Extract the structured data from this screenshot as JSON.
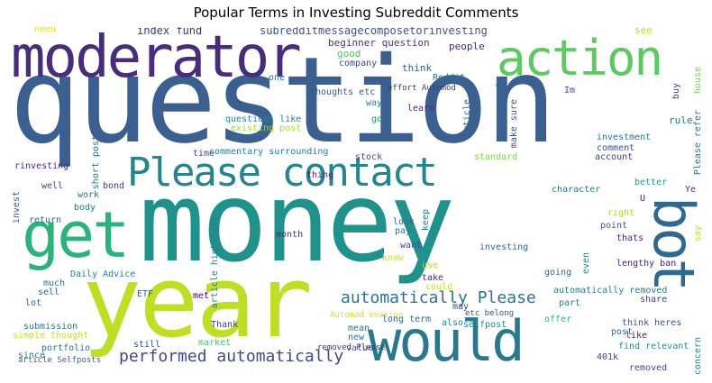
{
  "title": "Popular Terms in Investing Subreddit Comments",
  "words": [
    {
      "text": "question",
      "color": "#3b5f8f"
    },
    {
      "text": "money",
      "color": "#21918c"
    },
    {
      "text": "year",
      "color": "#bddf26"
    },
    {
      "text": "moderator",
      "color": "#472d7b"
    },
    {
      "text": "action",
      "color": "#5ec962"
    },
    {
      "text": "get",
      "color": "#2db27d"
    },
    {
      "text": "would",
      "color": "#2a788e"
    },
    {
      "text": "Please contact",
      "color": "#25858e"
    },
    {
      "text": "bot",
      "color": "#31688e"
    },
    {
      "text": "automatically Please",
      "color": "#2c728e"
    },
    {
      "text": "performed automatically",
      "color": "#3e4a89"
    },
    {
      "text": "index fund",
      "color": "#46327e"
    },
    {
      "text": "subredditmessagecomposetorinvesting",
      "color": "#3b528b"
    },
    {
      "text": "beginner question",
      "color": "#443983"
    },
    {
      "text": "people",
      "color": "#482878"
    },
    {
      "text": "good",
      "color": "#4ac16d"
    },
    {
      "text": "need",
      "color": "#dde318"
    },
    {
      "text": "company",
      "color": "#3f4788"
    },
    {
      "text": "think",
      "color": "#38598c"
    },
    {
      "text": "Reddit",
      "color": "#2e6e8e"
    },
    {
      "text": "effort Automod",
      "color": "#453781"
    },
    {
      "text": "Im",
      "color": "#3e4c8a"
    },
    {
      "text": "see",
      "color": "#b8de29"
    },
    {
      "text": "buy",
      "color": "#414487"
    },
    {
      "text": "house",
      "color": "#7ad151"
    },
    {
      "text": "one",
      "color": "#2a788e"
    },
    {
      "text": "thoughts etc",
      "color": "#38588c"
    },
    {
      "text": "way",
      "color": "#26818e"
    },
    {
      "text": "learn",
      "color": "#482475"
    },
    {
      "text": "cash",
      "color": "#2f6c8e"
    },
    {
      "text": "make sure",
      "color": "#39568c"
    },
    {
      "text": "article",
      "color": "#33638d"
    },
    {
      "text": "rule",
      "color": "#2d708e"
    },
    {
      "text": "questions like",
      "color": "#23898e"
    },
    {
      "text": "go",
      "color": "#1f968b"
    },
    {
      "text": "existing post",
      "color": "#9fda3a"
    },
    {
      "text": "short post",
      "color": "#2e6f8e"
    },
    {
      "text": "commentary surrounding",
      "color": "#277f8e"
    },
    {
      "text": "time",
      "color": "#3e4989"
    },
    {
      "text": "investment",
      "color": "#2c738e"
    },
    {
      "text": "Please refer",
      "color": "#2d708e"
    },
    {
      "text": "rinvesting",
      "color": "#472c7a"
    },
    {
      "text": "stock",
      "color": "#3d4d8a"
    },
    {
      "text": "standard",
      "color": "#7fd34e"
    },
    {
      "text": "comment",
      "color": "#3b528b"
    },
    {
      "text": "well",
      "color": "#3f4889"
    },
    {
      "text": "bond",
      "color": "#453882"
    },
    {
      "text": "thing",
      "color": "#481f70"
    },
    {
      "text": "account",
      "color": "#443a83"
    },
    {
      "text": "better",
      "color": "#1e9b8a"
    },
    {
      "text": "character",
      "color": "#2a788e"
    },
    {
      "text": "U",
      "color": "#482071"
    },
    {
      "text": "Ye",
      "color": "#46337f"
    },
    {
      "text": "work",
      "color": "#2c718e"
    },
    {
      "text": "body",
      "color": "#2c728e"
    },
    {
      "text": "return",
      "color": "#2f6b8e"
    },
    {
      "text": "invest",
      "color": "#38598c"
    },
    {
      "text": "month",
      "color": "#453581"
    },
    {
      "text": "look",
      "color": "#31678e"
    },
    {
      "text": "pay",
      "color": "#2d708e"
    },
    {
      "text": "keep",
      "color": "#2a788e"
    },
    {
      "text": "right",
      "color": "#addc30"
    },
    {
      "text": "point",
      "color": "#355f8d"
    },
    {
      "text": "thats",
      "color": "#482677"
    },
    {
      "text": "say",
      "color": "#bade28"
    },
    {
      "text": "want",
      "color": "#3e4c8a"
    },
    {
      "text": "know",
      "color": "#c8e020"
    },
    {
      "text": "lengthy ban",
      "color": "#482374"
    },
    {
      "text": "Daily Advice",
      "color": "#25838e"
    },
    {
      "text": "article highlight",
      "color": "#297b8e"
    },
    {
      "text": "investing",
      "color": "#33638d"
    },
    {
      "text": "use",
      "color": "#a5db36"
    },
    {
      "text": "take",
      "color": "#472d7b"
    },
    {
      "text": "even",
      "color": "#26818e"
    },
    {
      "text": "going",
      "color": "#32658e"
    },
    {
      "text": "much",
      "color": "#2a768e"
    },
    {
      "text": "sell",
      "color": "#31688e"
    },
    {
      "text": "lot",
      "color": "#33638d"
    },
    {
      "text": "met",
      "color": "#440154"
    },
    {
      "text": "could",
      "color": "#c2df23"
    },
    {
      "text": "may",
      "color": "#3e4989"
    },
    {
      "text": "automatically removed",
      "color": "#277e8e"
    },
    {
      "text": "part",
      "color": "#2b748e"
    },
    {
      "text": "share",
      "color": "#414487"
    },
    {
      "text": "ETF",
      "color": "#365c8d"
    },
    {
      "text": "Automod evasion",
      "color": "#d8e219"
    },
    {
      "text": "etc belong",
      "color": "#38588c"
    },
    {
      "text": "submission",
      "color": "#2a768e"
    },
    {
      "text": "simple thought",
      "color": "#c0df25"
    },
    {
      "text": "Thank",
      "color": "#424086"
    },
    {
      "text": "long term",
      "color": "#33638d"
    },
    {
      "text": "also",
      "color": "#25838e"
    },
    {
      "text": "mean",
      "color": "#2b758e"
    },
    {
      "text": "selfpost",
      "color": "#218f8d"
    },
    {
      "text": "offer",
      "color": "#2db27d"
    },
    {
      "text": "think heres",
      "color": "#3b528b"
    },
    {
      "text": "like",
      "color": "#481b6d"
    },
    {
      "text": "post",
      "color": "#2f6b8e"
    },
    {
      "text": "portfolio",
      "color": "#2a768e"
    },
    {
      "text": "market",
      "color": "#4ac16d"
    },
    {
      "text": "still",
      "color": "#3b528b"
    },
    {
      "text": "new",
      "color": "#2e6e8e"
    },
    {
      "text": "value",
      "color": "#355f8d"
    },
    {
      "text": "article Selfposts",
      "color": "#31678e"
    },
    {
      "text": "find relevant",
      "color": "#23898e"
    },
    {
      "text": "removed Please",
      "color": "#46327e"
    },
    {
      "text": "since",
      "color": "#2a788e"
    },
    {
      "text": "401k",
      "color": "#414487"
    },
    {
      "text": "removed",
      "color": "#3e4a89"
    },
    {
      "text": "concern",
      "color": "#277f8e"
    }
  ]
}
